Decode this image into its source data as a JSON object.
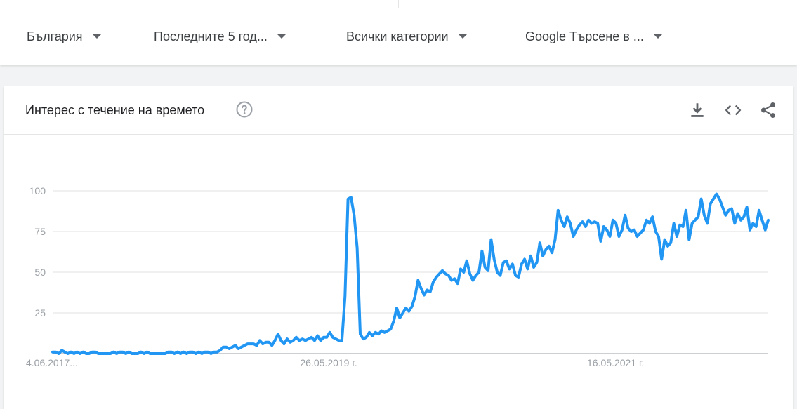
{
  "filters": {
    "region": "България",
    "period": "Последните 5 год...",
    "category": "Всички категории",
    "search_type": "Google Търсене в ..."
  },
  "card": {
    "title": "Интерес с течение на времето"
  },
  "icons": {
    "help": "help-circle-icon",
    "download": "download-icon",
    "embed": "code-embed-icon",
    "share": "share-icon"
  },
  "colors": {
    "line": "#2196f3",
    "grid": "#e0e0e0",
    "axis_text": "#9aa0a6"
  },
  "chart_data": {
    "type": "line",
    "title": "Интерес с течение на времето",
    "x_tick_labels": [
      "4.06.2017...",
      "26.05.2019 г.",
      "16.05.2021 г."
    ],
    "y_ticks": [
      25,
      50,
      75,
      100
    ],
    "ylim": [
      0,
      100
    ],
    "grid": true,
    "series": [
      {
        "values": [
          1,
          1,
          0,
          2,
          1,
          0,
          1,
          0,
          1,
          0,
          1,
          0,
          0,
          1,
          1,
          0,
          0,
          0,
          0,
          0,
          1,
          0,
          1,
          1,
          0,
          1,
          0,
          0,
          0,
          1,
          0,
          1,
          0,
          0,
          0,
          0,
          0,
          0,
          1,
          1,
          0,
          1,
          0,
          1,
          0,
          1,
          1,
          0,
          1,
          0,
          1,
          1,
          0,
          1,
          1,
          2,
          4,
          4,
          3,
          4,
          5,
          3,
          4,
          5,
          6,
          6,
          6,
          5,
          8,
          6,
          7,
          7,
          5,
          8,
          12,
          8,
          6,
          9,
          7,
          8,
          10,
          8,
          9,
          8,
          9,
          10,
          8,
          11,
          8,
          10,
          10,
          13,
          10,
          9,
          8,
          8,
          35,
          95,
          96,
          85,
          65,
          12,
          9,
          10,
          13,
          11,
          13,
          12,
          14,
          13,
          14,
          15,
          20,
          28,
          22,
          25,
          28,
          26,
          29,
          35,
          45,
          40,
          36,
          39,
          38,
          44,
          47,
          49,
          51,
          49,
          48,
          45,
          46,
          43,
          52,
          50,
          57,
          49,
          45,
          48,
          50,
          63,
          53,
          51,
          70,
          58,
          50,
          48,
          56,
          57,
          52,
          55,
          48,
          47,
          55,
          58,
          52,
          60,
          53,
          56,
          68,
          60,
          64,
          66,
          62,
          70,
          88,
          82,
          78,
          84,
          80,
          72,
          76,
          79,
          81,
          78,
          82,
          80,
          81,
          80,
          69,
          78,
          76,
          72,
          82,
          80,
          72,
          76,
          85,
          77,
          75,
          76,
          72,
          74,
          76,
          82,
          80,
          84,
          75,
          72,
          58,
          70,
          66,
          68,
          80,
          72,
          79,
          78,
          88,
          70,
          80,
          82,
          84,
          95,
          85,
          80,
          92,
          95,
          98,
          95,
          90,
          85,
          88,
          89,
          80,
          86,
          82,
          84,
          90,
          76,
          80,
          78,
          88,
          82,
          76,
          82
        ]
      }
    ]
  }
}
